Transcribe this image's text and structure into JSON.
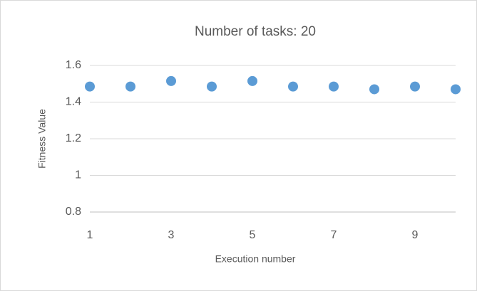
{
  "chart_data": {
    "type": "scatter",
    "title": "Number of tasks: 20",
    "x_label": "Execution number",
    "y_label": "Fitness Value",
    "series": [
      {
        "name": "Fitness Value",
        "color": "#5b9bd5",
        "x": [
          1,
          2,
          3,
          4,
          5,
          6,
          7,
          8,
          9,
          10
        ],
        "values": [
          1.485,
          1.485,
          1.515,
          1.485,
          1.515,
          1.485,
          1.485,
          1.47,
          1.485,
          1.47
        ]
      }
    ],
    "xlim": [
      1,
      10
    ],
    "xticks": [
      1,
      3,
      5,
      7,
      9
    ],
    "ylim": [
      0.8,
      1.6
    ],
    "yticks": [
      0.8,
      1,
      1.2,
      1.4,
      1.6
    ],
    "grid": true
  }
}
